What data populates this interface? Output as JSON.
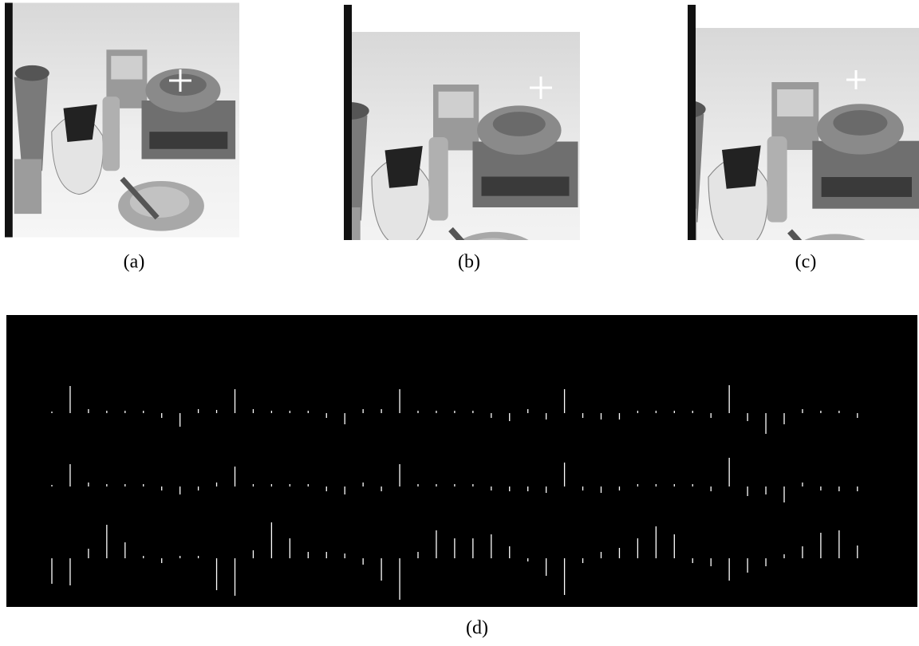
{
  "panels": [
    {
      "caption": "(a)"
    },
    {
      "caption": "(b)"
    },
    {
      "caption": "(c)"
    },
    {
      "caption": "(d)"
    }
  ],
  "feature_plot": {
    "rows": [
      [
        2,
        34,
        5,
        3,
        3,
        3,
        -6,
        -17,
        5,
        4,
        30,
        5,
        3,
        3,
        3,
        -6,
        -14,
        5,
        5,
        30,
        3,
        3,
        3,
        3,
        -6,
        -10,
        5,
        -8,
        30,
        -6,
        -8,
        -8,
        3,
        3,
        3,
        3,
        -6,
        35,
        -10,
        -26,
        -14,
        5,
        3,
        3,
        -6
      ],
      [
        2,
        28,
        5,
        3,
        3,
        3,
        -5,
        -10,
        -5,
        5,
        25,
        3,
        3,
        3,
        3,
        -6,
        -10,
        5,
        -6,
        28,
        3,
        3,
        3,
        3,
        -5,
        -6,
        -6,
        -8,
        30,
        -5,
        -8,
        -5,
        3,
        3,
        3,
        3,
        -6,
        36,
        -12,
        -10,
        -20,
        5,
        -5,
        -6,
        -6
      ],
      [
        -32,
        -34,
        12,
        42,
        20,
        3,
        -6,
        3,
        3,
        -40,
        -47,
        10,
        45,
        25,
        8,
        8,
        6,
        -8,
        -28,
        -52,
        8,
        35,
        25,
        25,
        30,
        15,
        -4,
        -22,
        -46,
        -6,
        8,
        13,
        25,
        40,
        30,
        -6,
        -10,
        -28,
        -18,
        -10,
        5,
        15,
        32,
        35,
        16
      ]
    ]
  }
}
